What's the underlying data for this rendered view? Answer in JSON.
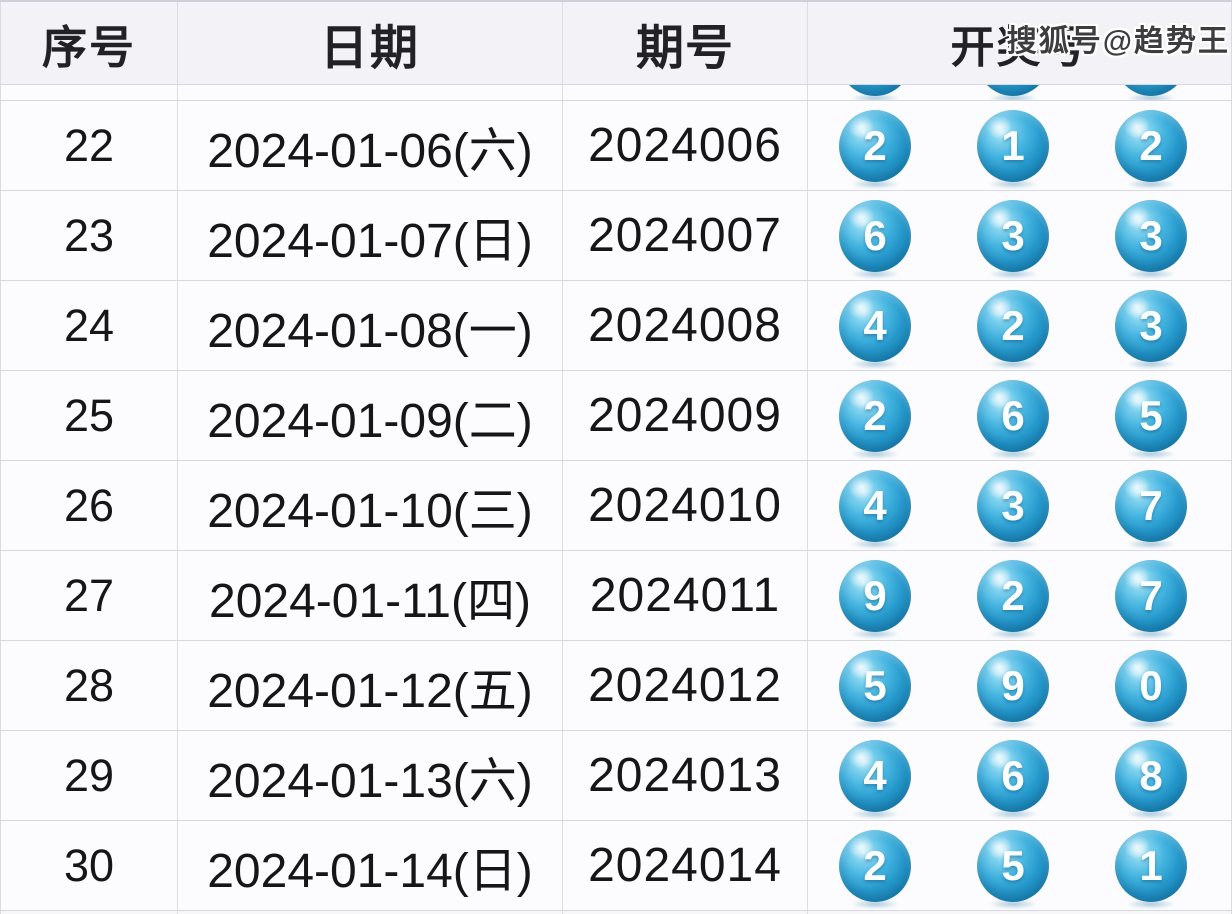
{
  "watermark": "搜狐号@趋势王",
  "colors": {
    "ball_main": "#2699cc",
    "ball_highlight": "#cdeef9",
    "ball_edge": "#1a84b6",
    "header_bg": "#f3f3f7",
    "row_bg": "#fcfcfe",
    "border": "#d7d7e0",
    "text": "#161618"
  },
  "table": {
    "columns": [
      {
        "key": "index",
        "label": "序号"
      },
      {
        "key": "date",
        "label": "日期"
      },
      {
        "key": "period",
        "label": "期号"
      },
      {
        "key": "numbers",
        "label": "开奖号"
      }
    ],
    "rows": [
      {
        "index": "22",
        "date": "2024-01-06(六)",
        "period": "2024006",
        "numbers": [
          "2",
          "1",
          "2"
        ]
      },
      {
        "index": "23",
        "date": "2024-01-07(日)",
        "period": "2024007",
        "numbers": [
          "6",
          "3",
          "3"
        ]
      },
      {
        "index": "24",
        "date": "2024-01-08(一)",
        "period": "2024008",
        "numbers": [
          "4",
          "2",
          "3"
        ]
      },
      {
        "index": "25",
        "date": "2024-01-09(二)",
        "period": "2024009",
        "numbers": [
          "2",
          "6",
          "5"
        ]
      },
      {
        "index": "26",
        "date": "2024-01-10(三)",
        "period": "2024010",
        "numbers": [
          "4",
          "3",
          "7"
        ]
      },
      {
        "index": "27",
        "date": "2024-01-11(四)",
        "period": "2024011",
        "numbers": [
          "9",
          "2",
          "7"
        ]
      },
      {
        "index": "28",
        "date": "2024-01-12(五)",
        "period": "2024012",
        "numbers": [
          "5",
          "9",
          "0"
        ]
      },
      {
        "index": "29",
        "date": "2024-01-13(六)",
        "period": "2024013",
        "numbers": [
          "4",
          "6",
          "8"
        ]
      },
      {
        "index": "30",
        "date": "2024-01-14(日)",
        "period": "2024014",
        "numbers": [
          "2",
          "5",
          "1"
        ]
      }
    ]
  }
}
